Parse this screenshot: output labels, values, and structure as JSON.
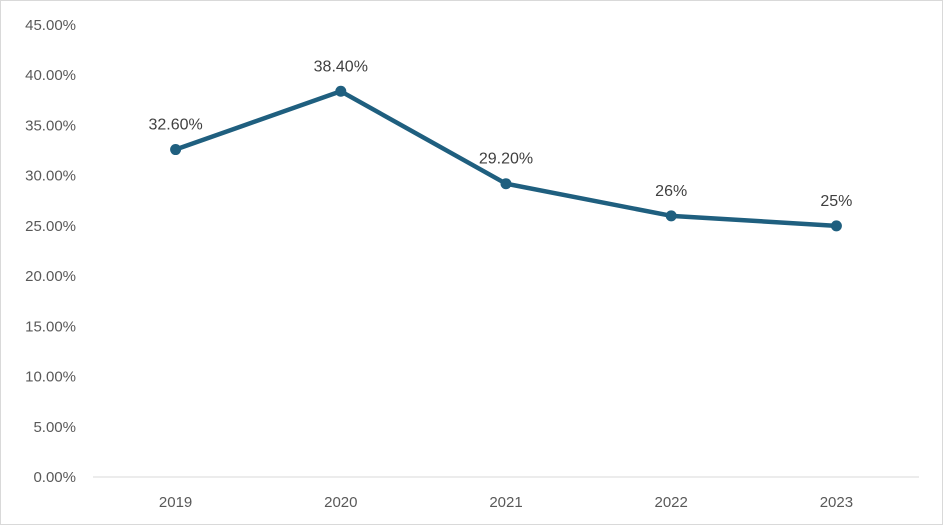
{
  "chart_data": {
    "type": "line",
    "categories": [
      "2019",
      "2020",
      "2021",
      "2022",
      "2023"
    ],
    "series": [
      {
        "values": [
          32.6,
          38.4,
          29.2,
          26,
          25
        ],
        "data_labels": [
          "32.60%",
          "38.40%",
          "29.20%",
          "26%",
          "25%"
        ],
        "color": "#1f5f7f"
      }
    ],
    "ylim": [
      0,
      45
    ],
    "y_ticks": [
      0,
      5,
      10,
      15,
      20,
      25,
      30,
      35,
      40,
      45
    ],
    "y_tick_labels": [
      "0.00%",
      "5.00%",
      "10.00%",
      "15.00%",
      "20.00%",
      "25.00%",
      "30.00%",
      "35.00%",
      "40.00%",
      "45.00%"
    ],
    "title": "",
    "xlabel": "",
    "ylabel": "",
    "grid": false,
    "legend": "none",
    "axis_color": "#d9d9d9"
  }
}
